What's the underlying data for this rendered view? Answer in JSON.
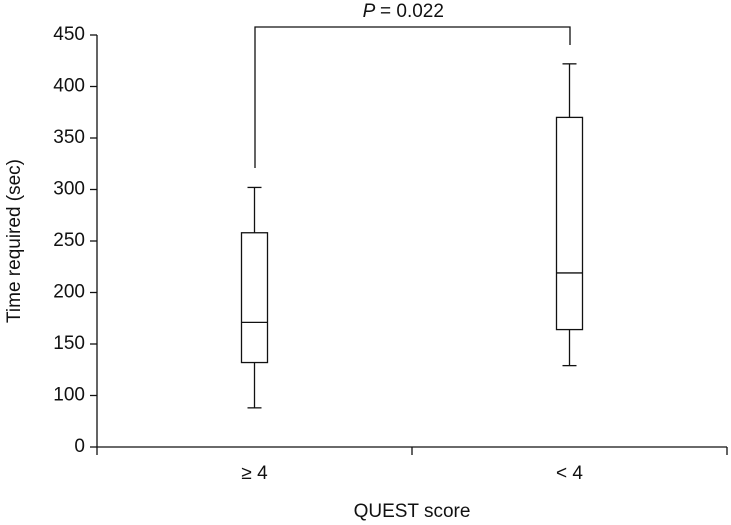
{
  "chart_data": {
    "type": "box",
    "x_label": "QUEST score",
    "y_label": "Time required (sec)",
    "categories": [
      "≥ 4",
      "< 4"
    ],
    "boxes": [
      {
        "min": 88,
        "q1": 132,
        "median": 171,
        "q3": 258,
        "max": 302
      },
      {
        "min": 129,
        "q1": 164,
        "median": 219,
        "q3": 370,
        "max": 422
      }
    ],
    "ylim": [
      50,
      450
    ],
    "yticks": [
      {
        "value": 50,
        "label": "0"
      },
      100,
      150,
      200,
      250,
      300,
      350,
      400,
      450
    ],
    "annotation_symbol": "P",
    "annotation": "= 0.022",
    "color": "#ffffff"
  }
}
